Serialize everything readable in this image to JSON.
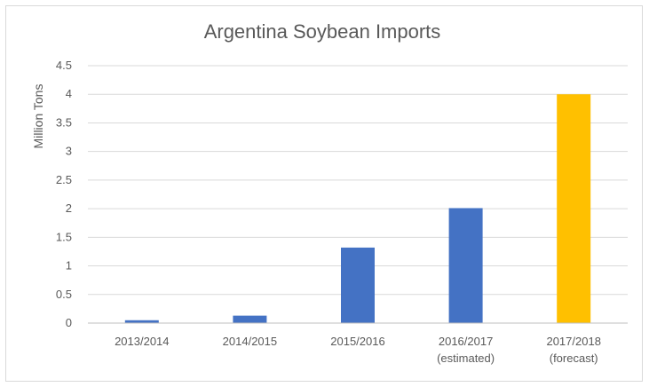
{
  "chart_data": {
    "type": "bar",
    "title": "Argentina Soybean Imports",
    "xlabel": "",
    "ylabel": "Million Tons",
    "ylim": [
      0,
      4.5
    ],
    "yticks": [
      "0",
      "0.5",
      "1",
      "1.5",
      "2",
      "2.5",
      "3",
      "3.5",
      "4",
      "4.5"
    ],
    "categories": [
      [
        "2013/2014"
      ],
      [
        "2014/2015"
      ],
      [
        "2015/2016"
      ],
      [
        "2016/2017",
        "(estimated)"
      ],
      [
        "2017/2018",
        "(forecast)"
      ]
    ],
    "values": [
      0.05,
      0.13,
      1.32,
      2.01,
      4.0
    ],
    "bar_colors": [
      "#4472C4",
      "#4472C4",
      "#4472C4",
      "#4472C4",
      "#FFC000"
    ],
    "grid": true,
    "legend": "none"
  }
}
